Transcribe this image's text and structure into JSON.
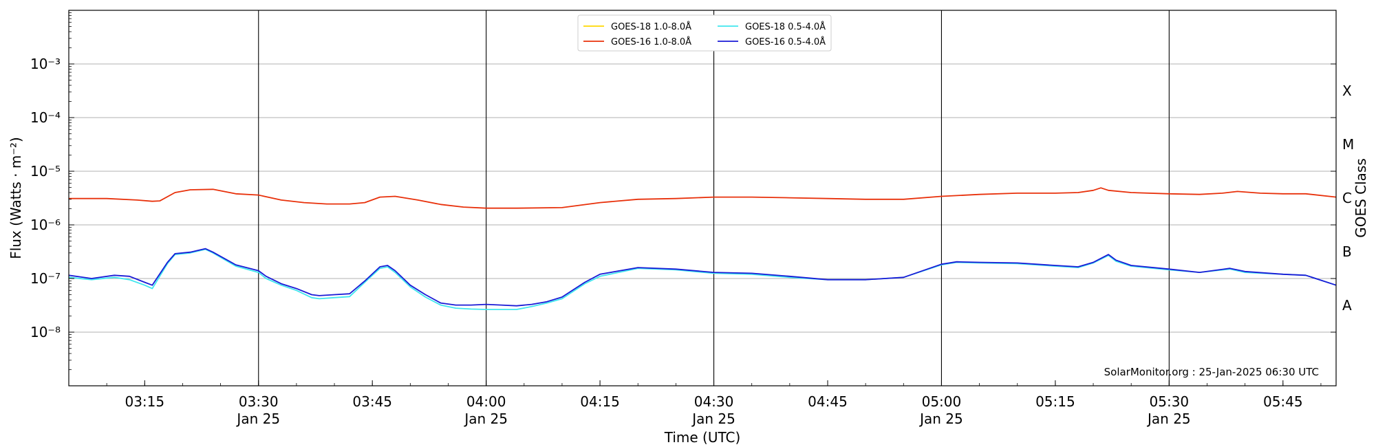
{
  "chart_data": {
    "type": "line",
    "title": "",
    "xlabel": "Time (UTC)",
    "ylabel": "Flux (Watts · m⁻²)",
    "y2label": "GOES Class",
    "yscale": "log",
    "ylim_exp": [
      -9,
      -2
    ],
    "xlim": [
      "03:05",
      "05:52"
    ],
    "grid": "horizontal",
    "legend_position": "top-center",
    "y_tick_labels": [
      "10⁻³",
      "10⁻⁴",
      "10⁻⁵",
      "10⁻⁶",
      "10⁻⁷",
      "10⁻⁸"
    ],
    "y_tick_exponents": [
      -3,
      -4,
      -5,
      -6,
      -7,
      -8
    ],
    "goes_classes": [
      {
        "label": "X",
        "exp": -3.5
      },
      {
        "label": "M",
        "exp": -4.5
      },
      {
        "label": "C",
        "exp": -5.5
      },
      {
        "label": "B",
        "exp": -6.5
      },
      {
        "label": "A",
        "exp": -7.5
      }
    ],
    "x_ticks": [
      {
        "time": "03:15",
        "label": "03:15",
        "date": ""
      },
      {
        "time": "03:30",
        "label": "03:30",
        "date": "Jan 25"
      },
      {
        "time": "03:45",
        "label": "03:45",
        "date": ""
      },
      {
        "time": "04:00",
        "label": "04:00",
        "date": "Jan 25"
      },
      {
        "time": "04:15",
        "label": "04:15",
        "date": ""
      },
      {
        "time": "04:30",
        "label": "04:30",
        "date": "Jan 25"
      },
      {
        "time": "04:45",
        "label": "04:45",
        "date": ""
      },
      {
        "time": "05:00",
        "label": "05:00",
        "date": "Jan 25"
      },
      {
        "time": "05:15",
        "label": "05:15",
        "date": ""
      },
      {
        "time": "05:30",
        "label": "05:30",
        "date": "Jan 25"
      },
      {
        "time": "05:45",
        "label": "05:45",
        "date": ""
      }
    ],
    "vertical_lines": [
      "03:30",
      "04:00",
      "04:30",
      "05:00",
      "05:30"
    ],
    "series": [
      {
        "name": "GOES-18 1.0-8.0Å",
        "color": "#ffd700",
        "x": [],
        "y": []
      },
      {
        "name": "GOES-16 1.0-8.0Å",
        "color": "#e8300a",
        "x": [
          "03:05",
          "03:10",
          "03:14",
          "03:16",
          "03:17",
          "03:19",
          "03:21",
          "03:24",
          "03:27",
          "03:30",
          "03:33",
          "03:36",
          "03:39",
          "03:42",
          "03:44",
          "03:46",
          "03:48",
          "03:51",
          "03:54",
          "03:57",
          "04:00",
          "04:04",
          "04:10",
          "04:15",
          "04:20",
          "04:25",
          "04:30",
          "04:35",
          "04:40",
          "04:45",
          "04:50",
          "04:55",
          "05:00",
          "05:05",
          "05:10",
          "05:15",
          "05:18",
          "05:20",
          "05:21",
          "05:22",
          "05:25",
          "05:30",
          "05:34",
          "05:37",
          "05:39",
          "05:42",
          "05:45",
          "05:48",
          "05:52"
        ],
        "y": [
          3.1e-06,
          3.1e-06,
          2.9e-06,
          2.75e-06,
          2.8e-06,
          4e-06,
          4.5e-06,
          4.6e-06,
          3.8e-06,
          3.6e-06,
          2.9e-06,
          2.6e-06,
          2.45e-06,
          2.45e-06,
          2.6e-06,
          3.3e-06,
          3.4e-06,
          2.9e-06,
          2.4e-06,
          2.15e-06,
          2.05e-06,
          2.05e-06,
          2.1e-06,
          2.6e-06,
          3e-06,
          3.1e-06,
          3.3e-06,
          3.3e-06,
          3.2e-06,
          3.1e-06,
          3e-06,
          3e-06,
          3.4e-06,
          3.7e-06,
          3.9e-06,
          3.9e-06,
          4e-06,
          4.4e-06,
          4.9e-06,
          4.4e-06,
          4e-06,
          3.8e-06,
          3.7e-06,
          3.9e-06,
          4.2e-06,
          3.9e-06,
          3.8e-06,
          3.8e-06,
          3.3e-06
        ]
      },
      {
        "name": "GOES-18 0.5-4.0Å",
        "color": "#3fe6ee",
        "x": [
          "03:05",
          "03:08",
          "03:11",
          "03:13",
          "03:15",
          "03:16",
          "03:18",
          "03:19",
          "03:21",
          "03:23",
          "03:24",
          "03:27",
          "03:30",
          "03:31",
          "03:33",
          "03:35",
          "03:37",
          "03:38",
          "03:40",
          "03:42",
          "03:44",
          "03:46",
          "03:47",
          "03:48",
          "03:50",
          "03:52",
          "03:54",
          "03:56",
          "03:58",
          "04:00",
          "04:02",
          "04:04",
          "04:06",
          "04:08",
          "04:10",
          "04:13",
          "04:15",
          "04:20",
          "04:25",
          "04:30",
          "04:35",
          "04:40",
          "04:45",
          "04:50",
          "04:55",
          "05:00",
          "05:02",
          "05:05",
          "05:10",
          "05:15",
          "05:18",
          "05:20",
          "05:22",
          "05:23",
          "05:25",
          "05:30",
          "05:34",
          "05:38",
          "05:40",
          "05:45",
          "05:48",
          "05:52"
        ],
        "y": [
          1.05e-07,
          9.5e-08,
          1.05e-07,
          9.5e-08,
          7.5e-08,
          6.5e-08,
          1.9e-07,
          2.8e-07,
          3e-07,
          3.5e-07,
          3e-07,
          1.7e-07,
          1.3e-07,
          1e-07,
          7.5e-08,
          6e-08,
          4.4e-08,
          4.2e-08,
          4.4e-08,
          4.6e-08,
          8.5e-08,
          1.55e-07,
          1.65e-07,
          1.3e-07,
          7e-08,
          4.5e-08,
          3.2e-08,
          2.8e-08,
          2.7e-08,
          2.65e-08,
          2.65e-08,
          2.65e-08,
          3e-08,
          3.5e-08,
          4.2e-08,
          8e-08,
          1.1e-07,
          1.55e-07,
          1.45e-07,
          1.25e-07,
          1.2e-07,
          1.05e-07,
          9.5e-08,
          9.5e-08,
          1.05e-07,
          1.8e-07,
          2e-07,
          1.95e-07,
          1.9e-07,
          1.7e-07,
          1.6e-07,
          1.95e-07,
          2.7e-07,
          2.1e-07,
          1.7e-07,
          1.45e-07,
          1.3e-07,
          1.5e-07,
          1.3e-07,
          1.2e-07,
          1.15e-07,
          7.5e-08
        ]
      },
      {
        "name": "GOES-16 0.5-4.0Å",
        "color": "#1a1ad6",
        "x": [
          "03:05",
          "03:08",
          "03:11",
          "03:13",
          "03:15",
          "03:16",
          "03:18",
          "03:19",
          "03:21",
          "03:23",
          "03:24",
          "03:27",
          "03:30",
          "03:31",
          "03:33",
          "03:35",
          "03:37",
          "03:38",
          "03:40",
          "03:42",
          "03:44",
          "03:46",
          "03:47",
          "03:48",
          "03:50",
          "03:52",
          "03:54",
          "03:56",
          "03:58",
          "04:00",
          "04:02",
          "04:04",
          "04:06",
          "04:08",
          "04:10",
          "04:13",
          "04:15",
          "04:20",
          "04:25",
          "04:30",
          "04:35",
          "04:40",
          "04:45",
          "04:50",
          "04:55",
          "05:00",
          "05:02",
          "05:05",
          "05:10",
          "05:15",
          "05:18",
          "05:20",
          "05:22",
          "05:23",
          "05:25",
          "05:30",
          "05:34",
          "05:38",
          "05:40",
          "05:45",
          "05:48",
          "05:52"
        ],
        "y": [
          1.15e-07,
          1e-07,
          1.15e-07,
          1.1e-07,
          8.5e-08,
          7.5e-08,
          2e-07,
          2.9e-07,
          3.1e-07,
          3.6e-07,
          3.1e-07,
          1.8e-07,
          1.4e-07,
          1.1e-07,
          8e-08,
          6.5e-08,
          5e-08,
          4.8e-08,
          5e-08,
          5.2e-08,
          9e-08,
          1.65e-07,
          1.75e-07,
          1.4e-07,
          7.5e-08,
          5e-08,
          3.5e-08,
          3.2e-08,
          3.2e-08,
          3.3e-08,
          3.2e-08,
          3.1e-08,
          3.3e-08,
          3.7e-08,
          4.5e-08,
          8.5e-08,
          1.2e-07,
          1.6e-07,
          1.5e-07,
          1.3e-07,
          1.25e-07,
          1.1e-07,
          9.5e-08,
          9.5e-08,
          1.05e-07,
          1.85e-07,
          2.05e-07,
          2e-07,
          1.95e-07,
          1.75e-07,
          1.65e-07,
          2e-07,
          2.8e-07,
          2.2e-07,
          1.75e-07,
          1.5e-07,
          1.3e-07,
          1.55e-07,
          1.35e-07,
          1.2e-07,
          1.15e-07,
          7.5e-08
        ]
      }
    ],
    "legend_items": [
      {
        "label": "GOES-18 1.0-8.0Å",
        "color": "#ffd700"
      },
      {
        "label": "GOES-16 1.0-8.0Å",
        "color": "#e8300a"
      },
      {
        "label": "GOES-18 0.5-4.0Å",
        "color": "#3fe6ee"
      },
      {
        "label": "GOES-16 0.5-4.0Å",
        "color": "#1a1ad6"
      }
    ],
    "watermark": "SolarMonitor.org : 25-Jan-2025 06:30 UTC"
  }
}
